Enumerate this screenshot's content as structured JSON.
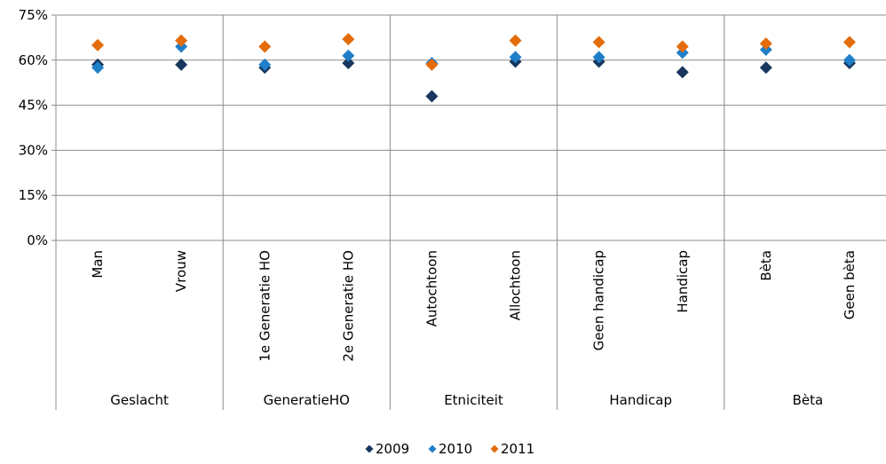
{
  "chart_data": {
    "type": "scatter",
    "title": "",
    "xlabel": "",
    "ylabel": "",
    "ylim": [
      0,
      75
    ],
    "y_ticks": [
      "0%",
      "15%",
      "30%",
      "45%",
      "60%",
      "75%"
    ],
    "y_tick_values": [
      0,
      15,
      30,
      45,
      60,
      75
    ],
    "grid": true,
    "legend_position": "bottom",
    "categories": [
      "Man",
      "Vrouw",
      "1e Generatie HO",
      "2e Generatie HO",
      "Autochtoon",
      "Allochtoon",
      "Geen handicap",
      "Handicap",
      "Bèta",
      "Geen bèta"
    ],
    "groups": [
      {
        "label": "Geslacht",
        "span": 2
      },
      {
        "label": "GeneratieHO",
        "span": 2
      },
      {
        "label": "Etniciteit",
        "span": 2
      },
      {
        "label": "Handicap",
        "span": 2
      },
      {
        "label": "Bèta",
        "span": 2
      }
    ],
    "series": [
      {
        "name": "2009",
        "color": "#17375e",
        "values": [
          58.5,
          58.5,
          57.5,
          59,
          48,
          59.5,
          59.5,
          56,
          57.5,
          59
        ]
      },
      {
        "name": "2010",
        "color": "#1f7fc8",
        "values": [
          57.5,
          64.5,
          58.5,
          61.5,
          59,
          61,
          61,
          62.5,
          63.5,
          60
        ]
      },
      {
        "name": "2011",
        "color": "#e46c0a",
        "values": [
          65,
          66.5,
          64.5,
          67,
          58.5,
          66.5,
          66,
          64.5,
          65.5,
          66
        ]
      }
    ]
  }
}
